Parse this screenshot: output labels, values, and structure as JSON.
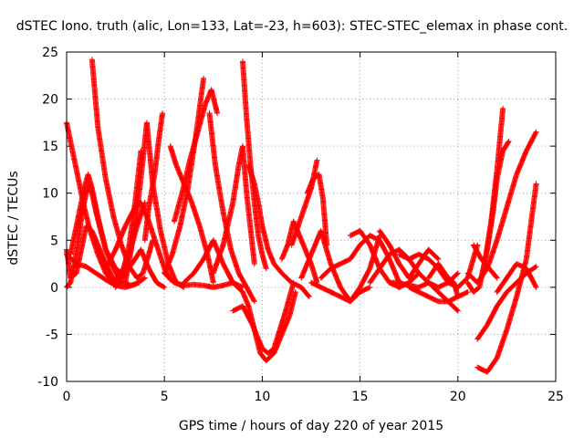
{
  "chart_data": {
    "type": "scatter",
    "title": "dSTEC Iono. truth (alic, Lon=133, Lat=-23, h=603): STEC-STEC_elemax in phase cont.",
    "xlabel": "GPS time / hours of day 220 of year 2015",
    "ylabel": "dSTEC  / TECUs",
    "xlim": [
      0,
      25
    ],
    "ylim": [
      -10,
      25
    ],
    "xticks": [
      0,
      5,
      10,
      15,
      20,
      25
    ],
    "yticks": [
      -10,
      -5,
      0,
      5,
      10,
      15,
      20,
      25
    ],
    "grid": true,
    "marker": "+",
    "color": "#ff0000",
    "series": [
      {
        "x": [
          0.0,
          0.3,
          0.6,
          0.9,
          1.2,
          1.6,
          2.0,
          2.4,
          2.8,
          3.2,
          3.6,
          4.0
        ],
        "y": [
          17.5,
          14.5,
          11.5,
          8.5,
          6.0,
          3.5,
          1.5,
          0.5,
          1.5,
          3.5,
          6.5,
          9.0
        ]
      },
      {
        "x": [
          0.0,
          0.2,
          0.5,
          0.8,
          1.0,
          1.3,
          1.6,
          2.0,
          2.4,
          2.8,
          3.2,
          3.5,
          3.8
        ],
        "y": [
          4.0,
          1.0,
          1.5,
          4.5,
          6.5,
          6.0,
          4.5,
          2.5,
          0.8,
          1.0,
          4.5,
          9.0,
          14.5
        ]
      },
      {
        "x": [
          0.0,
          0.2,
          0.4,
          0.6,
          0.8,
          1.0,
          1.2,
          1.5,
          2.0,
          2.5,
          3.0
        ],
        "y": [
          0.0,
          0.5,
          2.5,
          5.0,
          8.0,
          10.0,
          11.0,
          8.0,
          4.0,
          2.0,
          1.2
        ]
      },
      {
        "x": [
          0.2,
          0.5,
          0.7,
          0.9,
          1.1,
          1.3,
          1.6,
          2.0,
          2.4,
          2.8,
          3.3,
          3.7
        ],
        "y": [
          3.5,
          6.5,
          8.5,
          10.5,
          12.0,
          10.5,
          7.5,
          4.0,
          2.0,
          0.5,
          0.2,
          0.5
        ]
      },
      {
        "x": [
          0.0,
          0.5,
          1.0,
          1.5,
          2.0,
          2.5,
          3.0,
          3.5,
          4.0
        ],
        "y": [
          3.5,
          2.5,
          2.2,
          1.5,
          0.8,
          0.2,
          0.0,
          0.3,
          1.0
        ]
      },
      {
        "x": [
          1.3,
          1.6,
          2.0,
          2.4,
          2.8,
          3.2,
          3.6,
          3.9,
          4.2,
          4.4
        ],
        "y": [
          24.2,
          17.0,
          11.5,
          7.5,
          4.5,
          2.2,
          1.0,
          1.5,
          3.5,
          5.0
        ]
      },
      {
        "x": [
          2.5,
          3.0,
          3.5,
          3.8,
          4.2,
          4.6,
          5.0
        ],
        "y": [
          0.0,
          1.5,
          3.0,
          4.0,
          2.0,
          0.5,
          0.0
        ]
      },
      {
        "x": [
          2.0,
          2.5,
          3.0,
          3.5,
          3.8,
          4.2,
          4.6,
          5.0,
          5.3
        ],
        "y": [
          2.0,
          4.0,
          6.5,
          8.5,
          9.0,
          7.0,
          4.5,
          2.0,
          0.8
        ]
      },
      {
        "x": [
          3.0,
          3.3,
          3.6,
          3.9,
          4.1,
          4.4,
          4.8,
          5.2,
          5.6,
          6.0
        ],
        "y": [
          0.5,
          4.0,
          8.0,
          13.5,
          17.5,
          11.0,
          6.0,
          2.5,
          0.5,
          0.0
        ]
      },
      {
        "x": [
          4.0,
          4.2,
          4.5,
          4.7,
          4.9
        ],
        "y": [
          5.0,
          8.5,
          12.0,
          15.5,
          18.5
        ]
      },
      {
        "x": [
          5.0,
          5.4,
          5.8,
          6.2,
          6.6,
          7.0
        ],
        "y": [
          1.5,
          3.5,
          6.5,
          10.5,
          16.0,
          22.2
        ]
      },
      {
        "x": [
          5.3,
          5.6,
          6.0,
          6.4,
          6.8,
          7.2,
          7.5
        ],
        "y": [
          15.0,
          13.0,
          11.0,
          9.0,
          6.5,
          3.5,
          0.5
        ]
      },
      {
        "x": [
          5.5,
          5.9,
          6.3,
          6.7,
          7.1,
          7.4,
          7.7
        ],
        "y": [
          7.0,
          10.0,
          13.5,
          16.5,
          19.5,
          21.0,
          18.5
        ]
      },
      {
        "x": [
          6.0,
          6.5,
          7.0,
          7.5,
          8.0,
          8.5,
          9.0
        ],
        "y": [
          0.5,
          1.5,
          3.0,
          5.0,
          2.5,
          0.5,
          0.0
        ]
      },
      {
        "x": [
          5.0,
          5.5,
          6.0,
          6.5,
          7.0,
          7.5,
          8.0,
          8.5
        ],
        "y": [
          1.5,
          0.5,
          0.2,
          0.3,
          0.2,
          0.0,
          0.2,
          0.5
        ]
      },
      {
        "x": [
          7.5,
          8.0,
          8.5,
          8.8,
          9.0,
          9.2,
          9.6
        ],
        "y": [
          1.5,
          4.5,
          9.0,
          13.0,
          15.0,
          10.0,
          2.5
        ]
      },
      {
        "x": [
          7.3,
          7.6,
          8.0,
          8.4,
          8.8,
          9.2,
          9.6
        ],
        "y": [
          18.5,
          13.0,
          8.0,
          4.0,
          1.5,
          0.0,
          -1.5
        ]
      },
      {
        "x": [
          9.0,
          9.2,
          9.4,
          9.6,
          9.8,
          10.0,
          10.2
        ],
        "y": [
          24.0,
          18.0,
          13.0,
          9.0,
          5.5,
          3.5,
          2.0
        ]
      },
      {
        "x": [
          8.5,
          9.0,
          9.3,
          9.6,
          9.9,
          10.2,
          10.6,
          11.0,
          11.4,
          11.7
        ],
        "y": [
          0.5,
          -0.5,
          -2.0,
          -4.5,
          -7.0,
          -7.8,
          -7.0,
          -5.0,
          -3.0,
          -0.5
        ]
      },
      {
        "x": [
          8.5,
          9.0,
          9.5,
          10.0,
          10.3,
          10.6,
          10.9,
          11.2,
          11.6
        ],
        "y": [
          -2.5,
          -2.0,
          -4.0,
          -6.5,
          -7.0,
          -6.5,
          -4.5,
          -2.5,
          0.5
        ]
      },
      {
        "x": [
          9.3,
          9.6,
          9.8,
          10.0,
          10.3,
          10.6,
          11.0,
          11.5,
          12.0,
          12.4
        ],
        "y": [
          13.0,
          11.0,
          9.0,
          6.5,
          4.0,
          2.5,
          1.5,
          0.5,
          0.0,
          -1.0
        ]
      },
      {
        "x": [
          11.0,
          11.3,
          11.6,
          12.0,
          12.5,
          12.8
        ],
        "y": [
          3.0,
          4.5,
          7.0,
          5.0,
          2.5,
          0.5
        ]
      },
      {
        "x": [
          11.5,
          12.0,
          12.5,
          12.8
        ],
        "y": [
          4.5,
          7.5,
          10.5,
          13.5
        ]
      },
      {
        "x": [
          12.3,
          12.6,
          12.9,
          13.1,
          13.3
        ],
        "y": [
          10.0,
          11.5,
          12.0,
          9.5,
          4.5
        ]
      },
      {
        "x": [
          12.0,
          12.5,
          13.0,
          13.5,
          14.0,
          14.5,
          15.0,
          15.5
        ],
        "y": [
          1.0,
          3.5,
          6.0,
          2.5,
          0.0,
          -1.5,
          -0.5,
          0.0
        ]
      },
      {
        "x": [
          12.5,
          13.0,
          13.5,
          14.0,
          14.5,
          15.0,
          15.5,
          16.0
        ],
        "y": [
          0.5,
          0.0,
          -0.5,
          -1.0,
          -1.5,
          0.0,
          2.0,
          5.5
        ]
      },
      {
        "x": [
          13.0,
          13.5,
          14.0,
          14.5,
          15.0,
          15.5,
          16.0,
          16.5,
          17.0
        ],
        "y": [
          1.0,
          2.0,
          2.5,
          3.0,
          4.5,
          5.5,
          5.0,
          3.0,
          0.5
        ]
      },
      {
        "x": [
          14.5,
          15.0,
          15.5,
          16.0,
          16.5,
          17.0,
          17.5,
          18.0
        ],
        "y": [
          5.5,
          6.0,
          4.5,
          2.0,
          0.5,
          0.0,
          0.5,
          1.5
        ]
      },
      {
        "x": [
          16.0,
          16.5,
          17.0,
          17.5,
          18.0,
          18.5,
          19.0
        ],
        "y": [
          6.0,
          4.5,
          2.5,
          1.0,
          2.5,
          4.0,
          3.0
        ]
      },
      {
        "x": [
          15.5,
          16.0,
          16.5,
          17.0,
          17.5,
          18.0,
          18.5,
          19.0,
          19.5,
          20.0
        ],
        "y": [
          0.5,
          2.0,
          3.5,
          4.0,
          3.0,
          1.5,
          0.5,
          0.0,
          0.5,
          1.5
        ]
      },
      {
        "x": [
          17.0,
          17.5,
          18.0,
          18.5,
          19.0,
          19.5,
          20.0,
          20.5,
          21.0
        ],
        "y": [
          3.5,
          3.0,
          3.5,
          3.0,
          2.0,
          0.5,
          0.0,
          1.0,
          4.5
        ]
      },
      {
        "x": [
          17.5,
          18.0,
          18.5,
          19.0,
          19.5,
          20.0,
          20.5
        ],
        "y": [
          0.0,
          -0.5,
          -1.0,
          -1.5,
          -1.5,
          -1.0,
          -0.5
        ]
      },
      {
        "x": [
          18.5,
          19.0,
          19.5,
          19.8,
          20.0
        ],
        "y": [
          1.0,
          2.5,
          1.0,
          0.5,
          -1.0
        ]
      },
      {
        "x": [
          16.5,
          17.0,
          17.5,
          18.0,
          18.5,
          19.0,
          19.5,
          20.0
        ],
        "y": [
          0.5,
          0.5,
          0.2,
          0.0,
          0.5,
          -0.5,
          -1.5,
          -2.5
        ]
      },
      {
        "x": [
          20.5,
          20.8,
          21.1,
          21.4,
          21.7,
          22.0,
          22.3
        ],
        "y": [
          0.5,
          -0.5,
          0.0,
          3.0,
          7.0,
          12.5,
          19.0
        ]
      },
      {
        "x": [
          20.5,
          21.0,
          21.5,
          22.0,
          22.5,
          23.0,
          23.5,
          24.0
        ],
        "y": [
          1.5,
          0.5,
          2.0,
          5.0,
          8.5,
          12.0,
          14.5,
          16.5
        ]
      },
      {
        "x": [
          21.2,
          21.5,
          21.8,
          22.0,
          22.3,
          22.6
        ],
        "y": [
          1.0,
          4.0,
          8.0,
          11.5,
          14.5,
          15.5
        ]
      },
      {
        "x": [
          21.0,
          21.5,
          22.0,
          22.5,
          23.0,
          23.5,
          24.0
        ],
        "y": [
          -8.5,
          -9.0,
          -7.5,
          -4.5,
          -1.0,
          3.0,
          11.0
        ]
      },
      {
        "x": [
          21.0,
          21.5,
          22.0,
          22.5,
          23.0,
          23.5,
          24.0
        ],
        "y": [
          -5.5,
          -4.0,
          -2.0,
          -0.5,
          0.5,
          1.5,
          2.2
        ]
      },
      {
        "x": [
          22.0,
          22.5,
          23.0,
          23.5,
          24.0
        ],
        "y": [
          -0.5,
          1.0,
          2.5,
          2.0,
          0.0
        ]
      },
      {
        "x": [
          20.8,
          21.2,
          21.6,
          22.0
        ],
        "y": [
          4.5,
          3.0,
          2.0,
          1.0
        ]
      }
    ]
  }
}
